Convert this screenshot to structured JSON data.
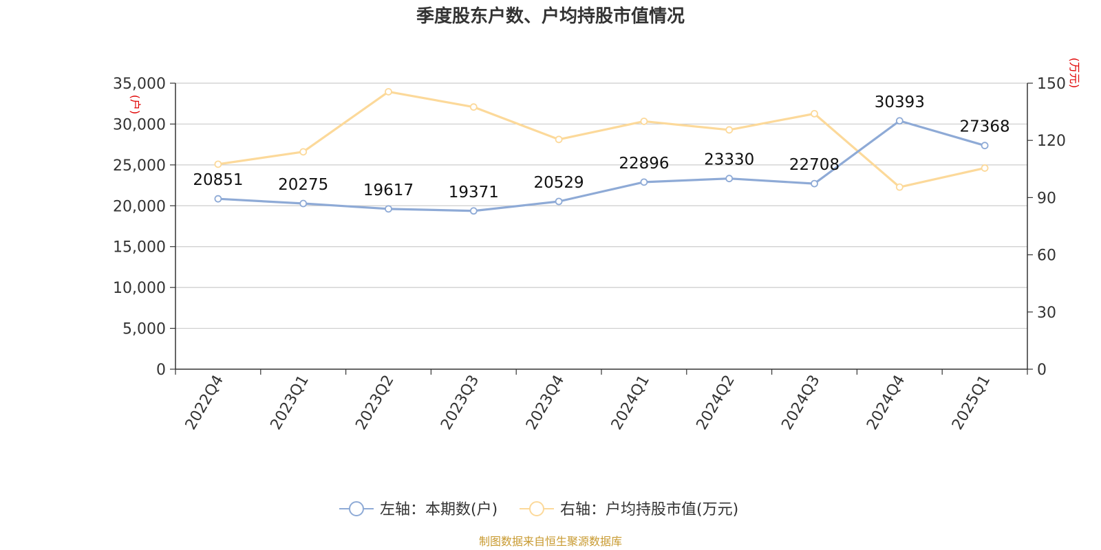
{
  "colors": {
    "series_left": "#8eaad6",
    "series_right": "#fcd99a",
    "grid": "#cccccc",
    "axis": "#333333",
    "unit": "#e00000",
    "source": "#c89a30"
  },
  "chart_data": {
    "type": "line",
    "title": "季度股东户数、户均持股市值情况",
    "categories": [
      "2022Q4",
      "2023Q1",
      "2023Q2",
      "2023Q3",
      "2023Q4",
      "2024Q1",
      "2024Q2",
      "2024Q3",
      "2024Q4",
      "2025Q1"
    ],
    "left_axis": {
      "unit": "(户)",
      "ylim": [
        0,
        35000
      ],
      "ticks": [
        0,
        5000,
        10000,
        15000,
        20000,
        25000,
        30000,
        35000
      ],
      "tick_labels": [
        "0",
        "5,000",
        "10,000",
        "15,000",
        "20,000",
        "25,000",
        "30,000",
        "35,000"
      ]
    },
    "right_axis": {
      "unit": "(万元)",
      "ylim": [
        0,
        150
      ],
      "ticks": [
        0,
        30,
        60,
        90,
        120,
        150
      ],
      "tick_labels": [
        "0",
        "30",
        "60",
        "90",
        "120",
        "150"
      ]
    },
    "grid": true,
    "legend_position": "bottom",
    "series": [
      {
        "name": "左轴：本期数(户)",
        "axis": "left",
        "values": [
          20851,
          20275,
          19617,
          19371,
          20529,
          22896,
          23330,
          22708,
          30393,
          27368
        ],
        "data_labels": [
          "20851",
          "20275",
          "19617",
          "19371",
          "20529",
          "22896",
          "23330",
          "22708",
          "30393",
          "27368"
        ]
      },
      {
        "name": "右轴：户均持股市值(万元)",
        "axis": "right",
        "values": [
          107.5,
          114,
          145.5,
          137.5,
          120.5,
          130,
          125.5,
          134,
          95.5,
          105.5
        ]
      }
    ]
  },
  "source_note": "制图数据来自恒生聚源数据库"
}
